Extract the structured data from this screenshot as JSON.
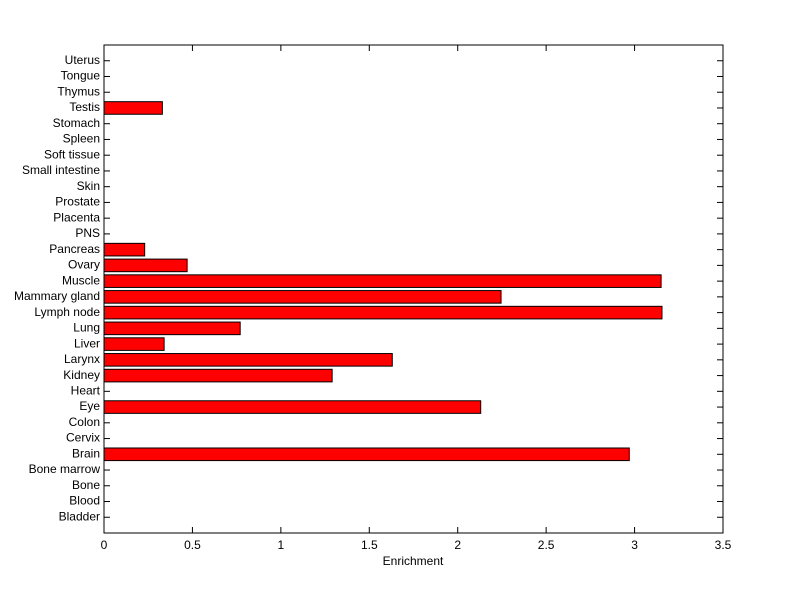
{
  "chart_data": {
    "type": "barh",
    "xlabel": "Enrichment",
    "categories": [
      "Bladder",
      "Blood",
      "Bone",
      "Bone marrow",
      "Brain",
      "Cervix",
      "Colon",
      "Eye",
      "Heart",
      "Kidney",
      "Larynx",
      "Liver",
      "Lung",
      "Lymph node",
      "Mammary gland",
      "Muscle",
      "Ovary",
      "Pancreas",
      "PNS",
      "Placenta",
      "Prostate",
      "Skin",
      "Small intestine",
      "Soft tissue",
      "Spleen",
      "Stomach",
      "Testis",
      "Thymus",
      "Tongue",
      "Uterus"
    ],
    "values": [
      0,
      0,
      0,
      0,
      2.97,
      0,
      0,
      2.13,
      0,
      1.29,
      1.63,
      0.34,
      0.77,
      3.155,
      2.245,
      3.15,
      0.47,
      0.23,
      0,
      0,
      0,
      0,
      0,
      0,
      0,
      0,
      0.33,
      0,
      0,
      0
    ],
    "color": "#ff0000",
    "xlim": [
      0,
      3.5
    ],
    "xticks": [
      0,
      0.5,
      1,
      1.5,
      2,
      2.5,
      3,
      3.5
    ],
    "grid": false
  }
}
